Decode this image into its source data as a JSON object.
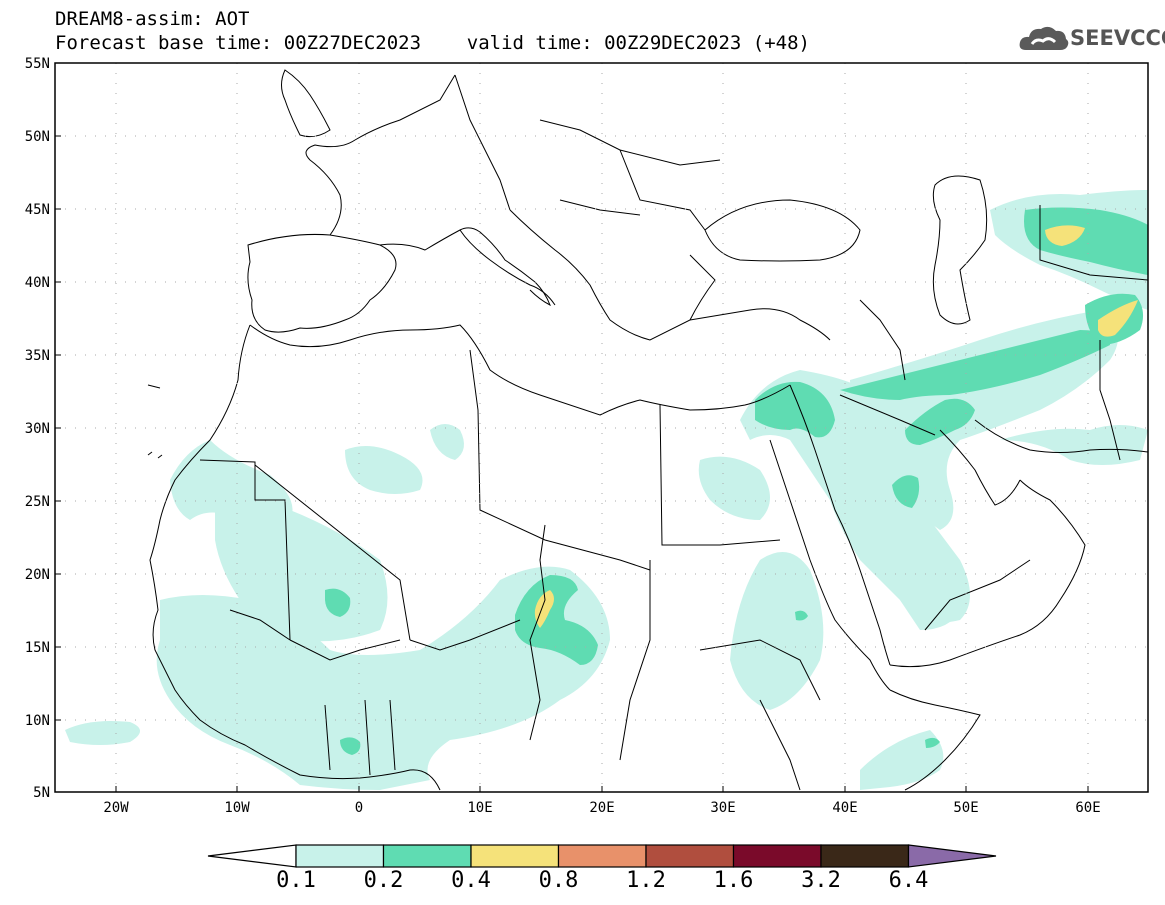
{
  "header": {
    "line1": "DREAM8-assim: AOT",
    "line2": "Forecast base time: 00Z27DEC2023    valid time: 00Z29DEC2023 (+48)"
  },
  "logo": {
    "text": "SEEVCCC",
    "icon": "cloud-icon"
  },
  "map": {
    "lon_range": [
      -25,
      65
    ],
    "lat_range": [
      5,
      55
    ],
    "lat_ticks": [
      "55N",
      "50N",
      "45N",
      "40N",
      "35N",
      "30N",
      "25N",
      "20N",
      "15N",
      "10N",
      "5N"
    ],
    "lon_ticks": [
      "20W",
      "10W",
      "0",
      "10E",
      "20E",
      "30E",
      "40E",
      "50E",
      "60E"
    ],
    "grid": "dotted"
  },
  "colorbar": {
    "labels": [
      "0.1",
      "0.2",
      "0.4",
      "0.8",
      "1.2",
      "1.6",
      "3.2",
      "6.4"
    ],
    "colors": [
      "#ffffff",
      "#c8f2ea",
      "#5fdcb2",
      "#f5e27a",
      "#e8916a",
      "#b04e3e",
      "#7a0a2a",
      "#3a2818",
      "#8a6aa8"
    ]
  }
}
